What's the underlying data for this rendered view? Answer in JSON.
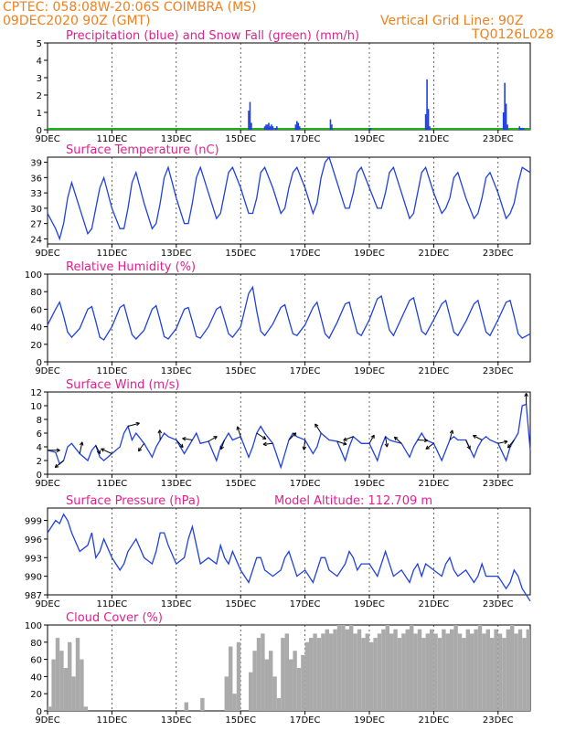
{
  "header": {
    "line1": "CPTEC:  058:08W-20:06S  COIMBRA (MS)",
    "line2": "09DEC2020 90Z (GMT)",
    "grid_note": "Vertical Grid Line: 90Z",
    "code": "TQ0126L028"
  },
  "x_ticks": [
    "9DEC",
    "11DEC",
    "13DEC",
    "15DEC",
    "17DEC",
    "19DEC",
    "21DEC",
    "23DEC"
  ],
  "series_colors": {
    "main": "#2040e0",
    "snow": "#20b020",
    "cloud": "#aaaaaa",
    "arrow": "#000000"
  },
  "chart_data": [
    {
      "id": "precip",
      "type": "bar",
      "title": "Precipitation (blue) and Snow Fall (green) (mm/h)",
      "ylim": [
        0,
        5
      ],
      "yticks": [
        "0",
        "1",
        "2",
        "3",
        "4",
        "5"
      ],
      "x_range_hours": [
        0,
        360
      ],
      "series": [
        {
          "name": "Precipitation",
          "x": [
            150,
            151,
            152,
            162,
            163,
            164,
            165,
            166,
            167,
            168,
            170,
            171,
            185,
            186,
            187,
            188,
            211,
            212,
            240,
            241,
            282,
            283,
            284,
            285,
            340,
            341,
            342,
            343,
            352,
            353,
            354,
            355
          ],
          "values": [
            1.1,
            1.6,
            0.4,
            0.2,
            0.3,
            0.3,
            0.4,
            0.2,
            0.3,
            0.2,
            0.1,
            0.2,
            0.3,
            0.5,
            0.4,
            0.2,
            0.6,
            0.3,
            0.1,
            0.1,
            0.9,
            2.9,
            1.2,
            0.2,
            1.0,
            2.7,
            1.5,
            0.3,
            0.2,
            0.1,
            0.1,
            0.1
          ]
        },
        {
          "name": "Snow Fall",
          "x": [],
          "values": []
        }
      ]
    },
    {
      "id": "temp",
      "type": "line",
      "title": "Surface Temperature (nC)",
      "ylim": [
        23,
        40
      ],
      "yticks": [
        "24",
        "27",
        "30",
        "33",
        "36",
        "39"
      ],
      "x_range_hours": [
        0,
        360
      ],
      "x": [
        0,
        6,
        9,
        12,
        15,
        18,
        24,
        30,
        33,
        36,
        39,
        42,
        48,
        54,
        57,
        60,
        63,
        66,
        72,
        78,
        81,
        84,
        87,
        90,
        96,
        102,
        105,
        108,
        111,
        114,
        120,
        126,
        129,
        132,
        135,
        138,
        144,
        150,
        153,
        156,
        159,
        162,
        168,
        174,
        177,
        180,
        183,
        186,
        192,
        198,
        201,
        204,
        207,
        210,
        216,
        222,
        225,
        228,
        231,
        234,
        240,
        246,
        249,
        252,
        255,
        258,
        264,
        270,
        273,
        276,
        279,
        282,
        288,
        294,
        297,
        300,
        303,
        306,
        312,
        318,
        321,
        324,
        327,
        330,
        336,
        342,
        345,
        348,
        351,
        354,
        360
      ],
      "values": [
        29,
        26,
        24,
        27,
        32,
        35,
        30,
        25,
        26,
        30,
        34,
        36,
        30,
        26,
        26,
        30,
        35,
        37,
        31,
        26,
        27,
        31,
        36,
        38,
        32,
        27,
        27,
        31,
        36,
        38,
        33,
        28,
        29,
        33,
        37,
        38,
        34,
        29,
        29,
        32,
        37,
        38,
        34,
        29,
        30,
        34,
        37,
        38,
        34,
        29,
        31,
        36,
        39,
        40,
        35,
        30,
        30,
        33,
        37,
        38,
        34,
        30,
        30,
        33,
        37,
        38,
        33,
        28,
        29,
        33,
        37,
        38,
        33,
        29,
        30,
        32,
        36,
        37,
        32,
        28,
        29,
        32,
        36,
        37,
        33,
        28,
        29,
        31,
        35,
        38,
        37
      ]
    },
    {
      "id": "rh",
      "type": "line",
      "title": "Relative Humidity (%)",
      "ylim": [
        0,
        100
      ],
      "yticks": [
        "0",
        "20",
        "40",
        "60",
        "80",
        "100"
      ],
      "x_range_hours": [
        0,
        360
      ],
      "x": [
        0,
        6,
        9,
        12,
        15,
        18,
        24,
        30,
        33,
        36,
        39,
        42,
        48,
        54,
        57,
        60,
        63,
        66,
        72,
        78,
        81,
        84,
        87,
        90,
        96,
        102,
        105,
        108,
        111,
        114,
        120,
        126,
        129,
        132,
        135,
        138,
        144,
        150,
        153,
        156,
        159,
        162,
        168,
        174,
        177,
        180,
        183,
        186,
        192,
        198,
        201,
        204,
        207,
        210,
        216,
        222,
        225,
        228,
        231,
        234,
        240,
        246,
        249,
        252,
        255,
        258,
        264,
        270,
        273,
        276,
        279,
        282,
        288,
        294,
        297,
        300,
        303,
        306,
        312,
        318,
        321,
        324,
        327,
        330,
        336,
        342,
        345,
        348,
        351,
        354,
        360
      ],
      "values": [
        42,
        60,
        68,
        52,
        34,
        28,
        38,
        60,
        63,
        46,
        28,
        25,
        40,
        62,
        65,
        48,
        31,
        26,
        36,
        60,
        64,
        47,
        29,
        26,
        38,
        60,
        62,
        46,
        29,
        27,
        40,
        60,
        63,
        48,
        32,
        28,
        40,
        78,
        85,
        58,
        35,
        30,
        43,
        62,
        65,
        48,
        32,
        30,
        42,
        62,
        68,
        50,
        32,
        27,
        45,
        66,
        68,
        50,
        33,
        30,
        48,
        72,
        75,
        55,
        36,
        30,
        50,
        70,
        73,
        54,
        35,
        31,
        48,
        66,
        70,
        52,
        34,
        30,
        46,
        66,
        70,
        52,
        34,
        30,
        48,
        68,
        70,
        52,
        32,
        27,
        32
      ]
    },
    {
      "id": "wind",
      "type": "line",
      "title": "Surface Wind (m/s)",
      "ylim": [
        0,
        12
      ],
      "yticks": [
        "0",
        "2",
        "4",
        "6",
        "8",
        "10",
        "12"
      ],
      "x_range_hours": [
        0,
        360
      ],
      "x": [
        0,
        6,
        9,
        12,
        15,
        18,
        24,
        30,
        33,
        36,
        39,
        42,
        48,
        54,
        57,
        60,
        63,
        66,
        72,
        78,
        81,
        84,
        87,
        90,
        96,
        102,
        105,
        108,
        111,
        114,
        120,
        126,
        129,
        132,
        135,
        138,
        144,
        150,
        153,
        156,
        159,
        162,
        168,
        174,
        177,
        180,
        183,
        186,
        192,
        198,
        201,
        204,
        207,
        210,
        216,
        222,
        225,
        228,
        231,
        234,
        240,
        246,
        249,
        252,
        255,
        258,
        264,
        270,
        273,
        276,
        279,
        282,
        288,
        294,
        297,
        300,
        303,
        306,
        312,
        318,
        321,
        324,
        327,
        330,
        336,
        342,
        345,
        348,
        351,
        354,
        357,
        360
      ],
      "values": [
        3.5,
        3.2,
        1.5,
        2,
        4,
        4.5,
        3,
        2,
        3.5,
        4.2,
        2.5,
        2,
        3,
        4,
        6,
        7,
        5,
        6,
        4.5,
        2.5,
        4,
        5,
        6,
        5.5,
        5,
        3,
        4,
        5,
        6,
        4.5,
        4.8,
        2,
        4,
        5,
        6,
        5,
        5.5,
        2.5,
        4,
        6,
        7,
        6,
        4.5,
        1,
        3,
        5,
        6,
        5.5,
        5,
        3,
        4,
        6,
        5.5,
        5,
        4.8,
        2,
        4,
        5.5,
        5,
        4.5,
        4.5,
        2,
        4,
        5.5,
        5,
        4.8,
        4.5,
        2.5,
        4,
        5,
        6,
        5,
        4.5,
        2,
        3.5,
        5,
        5.5,
        5,
        5,
        2.5,
        4,
        5,
        5.5,
        5,
        4.5,
        2,
        4,
        5,
        6,
        10,
        10.2,
        3.5
      ]
    },
    {
      "id": "pres",
      "type": "line",
      "title": "Surface Pressure (hPa)",
      "subtitle": "Model Altitude: 112.709 m",
      "ylim": [
        987,
        1001
      ],
      "yticks": [
        "987",
        "990",
        "993",
        "996",
        "999"
      ],
      "x_range_hours": [
        0,
        360
      ],
      "x": [
        0,
        6,
        9,
        12,
        15,
        18,
        24,
        30,
        33,
        36,
        39,
        42,
        48,
        54,
        57,
        60,
        63,
        66,
        72,
        78,
        81,
        84,
        87,
        90,
        96,
        102,
        105,
        108,
        111,
        114,
        120,
        126,
        129,
        132,
        135,
        138,
        144,
        150,
        153,
        156,
        159,
        162,
        168,
        174,
        177,
        180,
        183,
        186,
        192,
        198,
        201,
        204,
        207,
        210,
        216,
        222,
        225,
        228,
        231,
        234,
        240,
        246,
        249,
        252,
        255,
        258,
        264,
        270,
        273,
        276,
        279,
        282,
        288,
        294,
        297,
        300,
        303,
        306,
        312,
        318,
        321,
        324,
        327,
        330,
        336,
        342,
        345,
        348,
        351,
        354,
        360
      ],
      "values": [
        997,
        999,
        998.5,
        1000,
        999,
        997,
        994,
        995,
        997,
        993,
        994,
        996,
        993,
        991,
        992,
        994,
        995,
        996,
        993,
        992,
        994,
        997,
        997,
        995,
        992,
        993,
        996,
        998,
        995,
        992,
        993,
        992,
        995,
        993,
        992,
        994,
        991,
        989,
        991,
        993,
        993,
        991,
        990,
        991,
        993,
        994,
        992,
        990,
        991,
        989,
        991,
        993,
        993,
        991,
        990,
        992,
        994,
        993,
        991,
        992,
        992,
        990,
        992,
        994,
        992,
        990,
        991,
        989,
        991,
        992,
        990,
        992,
        991,
        990,
        992,
        993,
        991,
        990,
        991,
        989,
        990,
        992,
        990,
        990,
        990,
        988,
        989,
        991,
        990,
        988,
        986
      ]
    },
    {
      "id": "cloud",
      "type": "bar",
      "title": "Cloud Cover (%)",
      "ylim": [
        0,
        100
      ],
      "yticks": [
        "0",
        "20",
        "40",
        "60",
        "80",
        "100"
      ],
      "x_range_hours": [
        0,
        360
      ],
      "x": [
        0,
        3,
        6,
        9,
        12,
        15,
        18,
        21,
        24,
        27,
        30,
        33,
        36,
        39,
        42,
        45,
        48,
        51,
        54,
        57,
        60,
        63,
        66,
        69,
        72,
        75,
        78,
        81,
        84,
        87,
        90,
        93,
        96,
        99,
        102,
        105,
        108,
        111,
        114,
        117,
        120,
        123,
        126,
        129,
        132,
        135,
        138,
        141,
        144,
        147,
        150,
        153,
        156,
        159,
        162,
        165,
        168,
        171,
        174,
        177,
        180,
        183,
        186,
        189,
        192,
        195,
        198,
        201,
        204,
        207,
        210,
        213,
        216,
        219,
        222,
        225,
        228,
        231,
        234,
        237,
        240,
        243,
        246,
        249,
        252,
        255,
        258,
        261,
        264,
        267,
        270,
        273,
        276,
        279,
        282,
        285,
        288,
        291,
        294,
        297,
        300,
        303,
        306,
        309,
        312,
        315,
        318,
        321,
        324,
        327,
        330,
        333,
        336,
        339,
        342,
        345,
        348,
        351,
        354,
        357
      ],
      "values": [
        5,
        60,
        85,
        70,
        50,
        80,
        40,
        85,
        60,
        5,
        0,
        0,
        0,
        0,
        0,
        0,
        0,
        0,
        0,
        0,
        0,
        0,
        0,
        0,
        0,
        0,
        0,
        0,
        0,
        0,
        0,
        0,
        0,
        0,
        10,
        0,
        0,
        0,
        15,
        0,
        0,
        0,
        0,
        0,
        40,
        75,
        20,
        80,
        0,
        0,
        45,
        70,
        85,
        90,
        60,
        70,
        40,
        15,
        85,
        90,
        60,
        70,
        50,
        65,
        80,
        85,
        90,
        85,
        90,
        95,
        90,
        95,
        100,
        100,
        95,
        100,
        90,
        95,
        85,
        90,
        80,
        85,
        90,
        95,
        100,
        90,
        95,
        85,
        90,
        95,
        100,
        90,
        95,
        85,
        90,
        95,
        90,
        85,
        95,
        90,
        95,
        100,
        90,
        85,
        95,
        90,
        95,
        100,
        90,
        95,
        85,
        95,
        90,
        85,
        95,
        100,
        90,
        95,
        85,
        95
      ]
    }
  ]
}
